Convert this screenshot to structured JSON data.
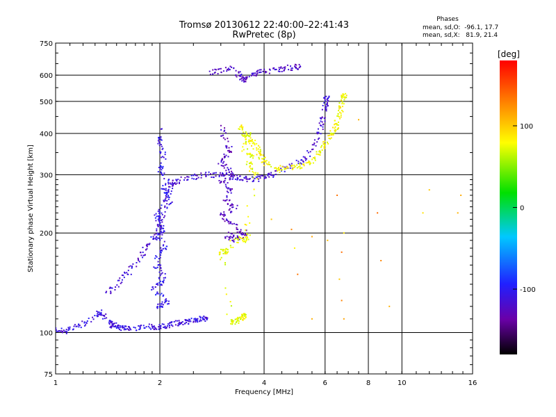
{
  "chart_data": {
    "type": "scatter",
    "title": "Tromsø 20130612 22:40:00–22:41:43",
    "subtitle": "RwPretec (8p)",
    "xlabel": "Frequency [MHz]",
    "ylabel": "Stationary phase Virtual Height [km]",
    "x_scale": "log",
    "y_scale": "log",
    "xlim": [
      1,
      16
    ],
    "ylim": [
      75,
      750
    ],
    "x_ticks": [
      1,
      2,
      4,
      6,
      8,
      10,
      16
    ],
    "x_tick_labels": [
      "1",
      "2",
      "4",
      "6",
      "8",
      "10",
      "16"
    ],
    "x_grid": [
      2,
      4,
      6,
      8,
      10
    ],
    "y_ticks": [
      75,
      100,
      200,
      300,
      400,
      500,
      600,
      750
    ],
    "y_tick_labels": [
      "75",
      "100",
      "200",
      "300",
      "400",
      "500",
      "600",
      "750"
    ],
    "y_grid": [
      100,
      200,
      300,
      400,
      500,
      600
    ],
    "grid": true,
    "info": {
      "heading": "Phases",
      "line1": "mean, sd,O:  -96.1, 17.7",
      "line2": "mean, sd,X:   81.9, 21.4"
    },
    "colorbar": {
      "label": "[deg]",
      "range": [
        -180,
        180
      ],
      "ticks": [
        100,
        0,
        -100
      ],
      "tick_labels": [
        "100",
        "0",
        "-100"
      ],
      "colormap": "rainbow: black(-180) → purple → blue → cyan → green → yellow → red(180)"
    },
    "traces": [
      {
        "name_hint": "o-mode low E trace",
        "phase": -110,
        "points": [
          [
            1.0,
            103
          ],
          [
            1.05,
            101
          ],
          [
            1.1,
            102
          ],
          [
            1.2,
            106
          ],
          [
            1.3,
            112
          ],
          [
            1.35,
            115
          ],
          [
            1.4,
            110
          ],
          [
            1.45,
            106
          ],
          [
            1.5,
            104
          ],
          [
            1.55,
            103
          ],
          [
            1.6,
            104
          ],
          [
            1.7,
            103
          ],
          [
            1.8,
            104
          ],
          [
            1.9,
            104
          ],
          [
            2.0,
            104
          ],
          [
            2.1,
            105
          ],
          [
            2.2,
            106
          ],
          [
            2.3,
            107
          ],
          [
            2.4,
            108
          ],
          [
            2.5,
            109
          ],
          [
            2.6,
            110
          ],
          [
            2.7,
            110
          ]
        ]
      },
      {
        "name_hint": "o-mode F1 rise",
        "phase": -115,
        "points": [
          [
            1.4,
            130
          ],
          [
            1.5,
            140
          ],
          [
            1.6,
            150
          ],
          [
            1.7,
            160
          ],
          [
            1.8,
            175
          ],
          [
            1.9,
            190
          ],
          [
            2.0,
            210
          ],
          [
            2.05,
            230
          ],
          [
            2.1,
            260
          ],
          [
            2.15,
            275
          ],
          [
            2.2,
            285
          ],
          [
            2.3,
            290
          ],
          [
            2.5,
            295
          ],
          [
            2.7,
            300
          ],
          [
            2.9,
            300
          ],
          [
            3.1,
            298
          ],
          [
            3.3,
            295
          ],
          [
            3.5,
            292
          ],
          [
            3.7,
            290
          ],
          [
            3.9,
            292
          ],
          [
            4.1,
            298
          ],
          [
            4.4,
            305
          ],
          [
            4.8,
            318
          ],
          [
            5.2,
            335
          ],
          [
            5.5,
            360
          ],
          [
            5.8,
            400
          ],
          [
            5.9,
            440
          ],
          [
            6.0,
            480
          ],
          [
            6.05,
            510
          ]
        ]
      },
      {
        "name_hint": "o-mode spread column 2MHz",
        "phase": -105,
        "points": [
          [
            2.0,
            420
          ],
          [
            2.0,
            380
          ],
          [
            2.05,
            340
          ],
          [
            2.0,
            310
          ],
          [
            2.1,
            290
          ],
          [
            2.05,
            270
          ],
          [
            2.15,
            250
          ],
          [
            1.95,
            230
          ],
          [
            2.0,
            215
          ],
          [
            2.05,
            200
          ],
          [
            1.9,
            195
          ],
          [
            2.1,
            185
          ],
          [
            2.0,
            175
          ],
          [
            1.95,
            160
          ],
          [
            2.05,
            150
          ],
          [
            2.0,
            140
          ],
          [
            1.9,
            135
          ],
          [
            2.1,
            125
          ],
          [
            2.0,
            120
          ]
        ]
      },
      {
        "name_hint": "o-mode spread F 3MHz",
        "phase": -125,
        "points": [
          [
            3.0,
            420
          ],
          [
            3.1,
            380
          ],
          [
            3.2,
            350
          ],
          [
            3.0,
            330
          ],
          [
            3.15,
            310
          ],
          [
            3.3,
            300
          ],
          [
            3.0,
            285
          ],
          [
            3.2,
            270
          ],
          [
            3.1,
            250
          ],
          [
            3.3,
            240
          ],
          [
            3.0,
            225
          ],
          [
            3.2,
            215
          ],
          [
            3.4,
            205
          ],
          [
            3.1,
            195
          ],
          [
            3.3,
            190
          ],
          [
            3.5,
            200
          ]
        ]
      },
      {
        "name_hint": "o-mode top echoes",
        "phase": -120,
        "points": [
          [
            2.8,
            610
          ],
          [
            3.0,
            620
          ],
          [
            3.2,
            630
          ],
          [
            3.4,
            600
          ],
          [
            3.5,
            580
          ],
          [
            3.6,
            590
          ],
          [
            3.8,
            610
          ],
          [
            4.0,
            615
          ],
          [
            4.3,
            620
          ],
          [
            4.6,
            630
          ],
          [
            5.0,
            635
          ]
        ]
      },
      {
        "name_hint": "x-mode F trace",
        "phase": 80,
        "points": [
          [
            3.6,
            400
          ],
          [
            3.7,
            380
          ],
          [
            3.8,
            360
          ],
          [
            3.9,
            340
          ],
          [
            4.0,
            330
          ],
          [
            4.2,
            320
          ],
          [
            4.5,
            310
          ],
          [
            4.8,
            315
          ],
          [
            5.2,
            320
          ],
          [
            5.5,
            330
          ],
          [
            5.8,
            350
          ],
          [
            6.0,
            370
          ],
          [
            6.2,
            390
          ],
          [
            6.4,
            410
          ],
          [
            6.5,
            430
          ],
          [
            6.6,
            460
          ],
          [
            6.7,
            490
          ],
          [
            6.8,
            520
          ]
        ]
      },
      {
        "name_hint": "x-mode spread",
        "phase": 75,
        "points": [
          [
            3.4,
            420
          ],
          [
            3.5,
            400
          ],
          [
            3.6,
            380
          ],
          [
            3.5,
            360
          ],
          [
            3.7,
            340
          ],
          [
            3.6,
            320
          ],
          [
            3.8,
            300
          ],
          [
            3.5,
            190
          ],
          [
            3.6,
            195
          ],
          [
            3.3,
            190
          ],
          [
            3.1,
            175
          ],
          [
            3.0,
            175
          ],
          [
            3.2,
            108
          ],
          [
            3.3,
            108
          ],
          [
            3.4,
            110
          ],
          [
            3.5,
            112
          ]
        ]
      },
      {
        "name_hint": "scattered points",
        "phase": 110,
        "points": [
          [
            4.2,
            220
          ],
          [
            4.8,
            205
          ],
          [
            5.5,
            195
          ],
          [
            6.1,
            190
          ],
          [
            6.8,
            200
          ],
          [
            6.7,
            175
          ],
          [
            6.6,
            145
          ],
          [
            6.7,
            125
          ],
          [
            6.8,
            110
          ],
          [
            6.5,
            260
          ],
          [
            7.5,
            440
          ],
          [
            8.5,
            230
          ],
          [
            8.7,
            165
          ],
          [
            9.2,
            120
          ],
          [
            11.5,
            230
          ],
          [
            12,
            270
          ],
          [
            14.5,
            230
          ],
          [
            14.8,
            260
          ],
          [
            5.0,
            150
          ],
          [
            5.5,
            110
          ],
          [
            4.9,
            180
          ]
        ]
      }
    ]
  }
}
